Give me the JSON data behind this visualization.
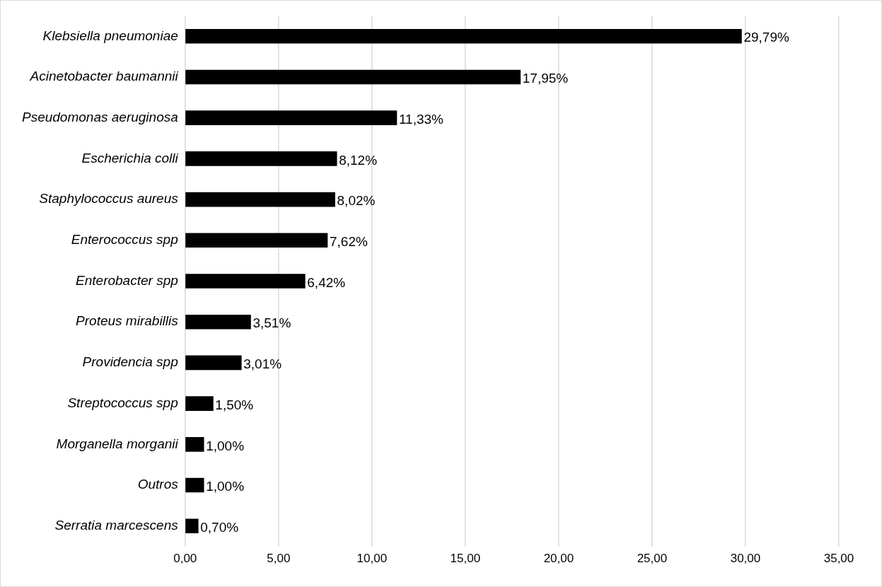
{
  "chart_data": {
    "type": "bar",
    "orientation": "horizontal",
    "categories": [
      "Klebsiella pneumoniae",
      "Acinetobacter baumannii",
      "Pseudomonas aeruginosa",
      "Escherichia colli",
      "Staphylococcus aureus",
      "Enterococcus spp",
      "Enterobacter spp",
      "Proteus mirabillis",
      "Providencia spp",
      "Streptococcus spp",
      "Morganella morganii",
      "Outros",
      "Serratia marcescens"
    ],
    "values": [
      29.79,
      17.95,
      11.33,
      8.12,
      8.02,
      7.62,
      6.42,
      3.51,
      3.01,
      1.5,
      1.0,
      1.0,
      0.7
    ],
    "value_labels": [
      "29,79%",
      "17,95%",
      "11,33%",
      "8,12%",
      "8,02%",
      "7,62%",
      "6,42%",
      "3,51%",
      "3,01%",
      "1,50%",
      "1,00%",
      "1,00%",
      "0,70%"
    ],
    "color": "#000000",
    "xlim": [
      0,
      35
    ],
    "xticks": [
      {
        "value": 0,
        "label": "0,00"
      },
      {
        "value": 5,
        "label": "5,00"
      },
      {
        "value": 10,
        "label": "10,00"
      },
      {
        "value": 15,
        "label": "15,00"
      },
      {
        "value": 20,
        "label": "20,00"
      },
      {
        "value": 25,
        "label": "25,00"
      },
      {
        "value": 30,
        "label": "30,00"
      },
      {
        "value": 35,
        "label": "35,00"
      }
    ],
    "grid": "x",
    "legend": false
  }
}
